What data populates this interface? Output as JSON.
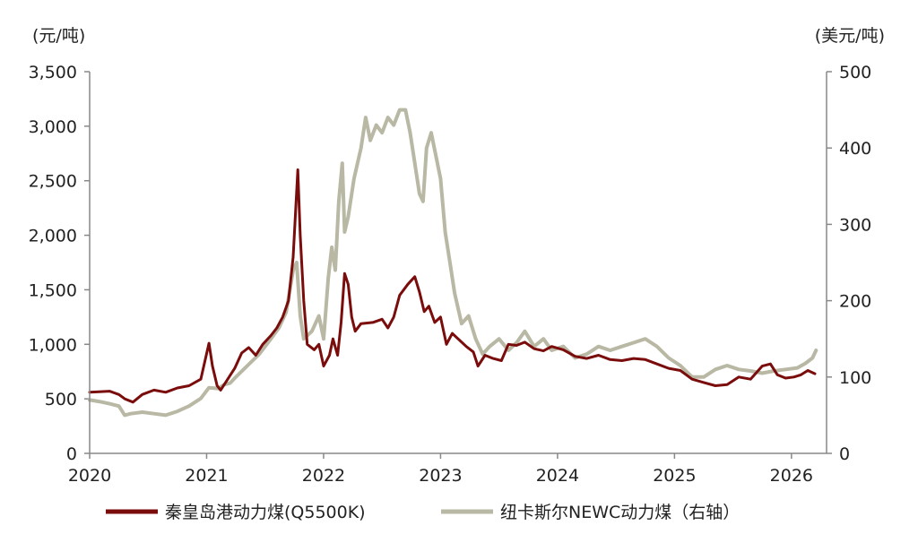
{
  "chart_data": {
    "type": "line",
    "title": "",
    "xlabel": "",
    "y_left": {
      "unit_label": "(元/吨)",
      "range": [
        0,
        3500
      ],
      "ticks": [
        0,
        500,
        1000,
        1500,
        2000,
        2500,
        3000,
        3500
      ],
      "tick_labels": [
        "0",
        "500",
        "1,000",
        "1,500",
        "2,000",
        "2,500",
        "3,000",
        "3,500"
      ]
    },
    "y_right": {
      "unit_label": "(美元/吨)",
      "range": [
        0,
        500
      ],
      "ticks": [
        0,
        100,
        200,
        300,
        400,
        500
      ],
      "tick_labels": [
        "0",
        "100",
        "200",
        "300",
        "400",
        "500"
      ]
    },
    "x_axis": {
      "range": [
        2020.0,
        2026.3
      ],
      "ticks": [
        2020,
        2021,
        2022,
        2023,
        2024,
        2025,
        2026
      ],
      "tick_labels": [
        "2020",
        "2021",
        "2022",
        "2023",
        "2024",
        "2025",
        "2026"
      ]
    },
    "grid": false,
    "legend": "bottom",
    "series": [
      {
        "name": "秦皇岛港动力煤(Q5500K)",
        "axis": "left",
        "color": "#7a0c0c",
        "points": [
          [
            2020.0,
            560
          ],
          [
            2020.08,
            565
          ],
          [
            2020.17,
            570
          ],
          [
            2020.25,
            540
          ],
          [
            2020.3,
            500
          ],
          [
            2020.37,
            470
          ],
          [
            2020.45,
            540
          ],
          [
            2020.55,
            580
          ],
          [
            2020.65,
            560
          ],
          [
            2020.75,
            600
          ],
          [
            2020.85,
            620
          ],
          [
            2020.95,
            680
          ],
          [
            2021.02,
            1010
          ],
          [
            2021.05,
            800
          ],
          [
            2021.09,
            620
          ],
          [
            2021.12,
            580
          ],
          [
            2021.18,
            680
          ],
          [
            2021.24,
            780
          ],
          [
            2021.3,
            920
          ],
          [
            2021.36,
            970
          ],
          [
            2021.42,
            900
          ],
          [
            2021.48,
            1000
          ],
          [
            2021.55,
            1080
          ],
          [
            2021.6,
            1150
          ],
          [
            2021.65,
            1250
          ],
          [
            2021.7,
            1400
          ],
          [
            2021.74,
            1800
          ],
          [
            2021.78,
            2600
          ],
          [
            2021.8,
            2000
          ],
          [
            2021.83,
            1400
          ],
          [
            2021.86,
            1000
          ],
          [
            2021.92,
            950
          ],
          [
            2021.96,
            1000
          ],
          [
            2022.0,
            800
          ],
          [
            2022.05,
            900
          ],
          [
            2022.08,
            1050
          ],
          [
            2022.12,
            900
          ],
          [
            2022.15,
            1200
          ],
          [
            2022.18,
            1650
          ],
          [
            2022.21,
            1550
          ],
          [
            2022.24,
            1250
          ],
          [
            2022.27,
            1120
          ],
          [
            2022.32,
            1190
          ],
          [
            2022.42,
            1200
          ],
          [
            2022.5,
            1230
          ],
          [
            2022.55,
            1150
          ],
          [
            2022.6,
            1250
          ],
          [
            2022.65,
            1450
          ],
          [
            2022.72,
            1550
          ],
          [
            2022.78,
            1620
          ],
          [
            2022.82,
            1480
          ],
          [
            2022.86,
            1300
          ],
          [
            2022.9,
            1350
          ],
          [
            2022.95,
            1200
          ],
          [
            2023.0,
            1250
          ],
          [
            2023.05,
            1000
          ],
          [
            2023.1,
            1100
          ],
          [
            2023.15,
            1050
          ],
          [
            2023.22,
            980
          ],
          [
            2023.28,
            930
          ],
          [
            2023.32,
            800
          ],
          [
            2023.38,
            900
          ],
          [
            2023.45,
            870
          ],
          [
            2023.52,
            850
          ],
          [
            2023.58,
            1000
          ],
          [
            2023.65,
            990
          ],
          [
            2023.72,
            1020
          ],
          [
            2023.8,
            960
          ],
          [
            2023.88,
            940
          ],
          [
            2023.95,
            980
          ],
          [
            2024.05,
            950
          ],
          [
            2024.15,
            890
          ],
          [
            2024.25,
            870
          ],
          [
            2024.35,
            900
          ],
          [
            2024.45,
            860
          ],
          [
            2024.55,
            850
          ],
          [
            2024.65,
            870
          ],
          [
            2024.75,
            860
          ],
          [
            2024.85,
            820
          ],
          [
            2024.95,
            780
          ],
          [
            2025.05,
            760
          ],
          [
            2025.15,
            680
          ],
          [
            2025.25,
            650
          ],
          [
            2025.35,
            620
          ],
          [
            2025.45,
            630
          ],
          [
            2025.55,
            700
          ],
          [
            2025.65,
            680
          ],
          [
            2025.75,
            800
          ],
          [
            2025.82,
            820
          ],
          [
            2025.88,
            720
          ],
          [
            2025.95,
            690
          ],
          [
            2026.02,
            700
          ],
          [
            2026.08,
            720
          ],
          [
            2026.14,
            760
          ],
          [
            2026.2,
            730
          ]
        ]
      },
      {
        "name": "纽卡斯尔NEWC动力煤（右轴）",
        "axis": "right",
        "color": "#b8b8a4",
        "points": [
          [
            2020.0,
            70
          ],
          [
            2020.08,
            68
          ],
          [
            2020.17,
            65
          ],
          [
            2020.25,
            62
          ],
          [
            2020.3,
            50
          ],
          [
            2020.35,
            52
          ],
          [
            2020.45,
            54
          ],
          [
            2020.55,
            52
          ],
          [
            2020.65,
            50
          ],
          [
            2020.75,
            55
          ],
          [
            2020.85,
            62
          ],
          [
            2020.95,
            72
          ],
          [
            2021.02,
            86
          ],
          [
            2021.1,
            85
          ],
          [
            2021.15,
            90
          ],
          [
            2021.2,
            92
          ],
          [
            2021.25,
            100
          ],
          [
            2021.35,
            115
          ],
          [
            2021.45,
            130
          ],
          [
            2021.55,
            150
          ],
          [
            2021.62,
            165
          ],
          [
            2021.68,
            185
          ],
          [
            2021.74,
            240
          ],
          [
            2021.77,
            250
          ],
          [
            2021.8,
            180
          ],
          [
            2021.83,
            150
          ],
          [
            2021.9,
            160
          ],
          [
            2021.96,
            180
          ],
          [
            2022.0,
            150
          ],
          [
            2022.04,
            230
          ],
          [
            2022.07,
            270
          ],
          [
            2022.1,
            240
          ],
          [
            2022.13,
            330
          ],
          [
            2022.16,
            380
          ],
          [
            2022.18,
            290
          ],
          [
            2022.21,
            310
          ],
          [
            2022.26,
            360
          ],
          [
            2022.32,
            400
          ],
          [
            2022.36,
            440
          ],
          [
            2022.4,
            410
          ],
          [
            2022.45,
            430
          ],
          [
            2022.5,
            420
          ],
          [
            2022.55,
            440
          ],
          [
            2022.6,
            430
          ],
          [
            2022.65,
            450
          ],
          [
            2022.7,
            450
          ],
          [
            2022.74,
            420
          ],
          [
            2022.78,
            380
          ],
          [
            2022.82,
            340
          ],
          [
            2022.85,
            330
          ],
          [
            2022.88,
            400
          ],
          [
            2022.92,
            420
          ],
          [
            2022.96,
            390
          ],
          [
            2023.0,
            360
          ],
          [
            2023.04,
            290
          ],
          [
            2023.08,
            250
          ],
          [
            2023.12,
            210
          ],
          [
            2023.18,
            170
          ],
          [
            2023.24,
            180
          ],
          [
            2023.3,
            150
          ],
          [
            2023.36,
            130
          ],
          [
            2023.42,
            140
          ],
          [
            2023.5,
            150
          ],
          [
            2023.58,
            135
          ],
          [
            2023.65,
            145
          ],
          [
            2023.72,
            160
          ],
          [
            2023.8,
            140
          ],
          [
            2023.88,
            150
          ],
          [
            2023.95,
            135
          ],
          [
            2024.05,
            140
          ],
          [
            2024.15,
            125
          ],
          [
            2024.25,
            130
          ],
          [
            2024.35,
            140
          ],
          [
            2024.45,
            135
          ],
          [
            2024.55,
            140
          ],
          [
            2024.65,
            145
          ],
          [
            2024.75,
            150
          ],
          [
            2024.85,
            140
          ],
          [
            2024.95,
            125
          ],
          [
            2025.05,
            115
          ],
          [
            2025.15,
            100
          ],
          [
            2025.25,
            100
          ],
          [
            2025.35,
            110
          ],
          [
            2025.45,
            115
          ],
          [
            2025.55,
            110
          ],
          [
            2025.65,
            108
          ],
          [
            2025.75,
            105
          ],
          [
            2025.85,
            108
          ],
          [
            2025.95,
            110
          ],
          [
            2026.05,
            112
          ],
          [
            2026.12,
            118
          ],
          [
            2026.18,
            125
          ],
          [
            2026.21,
            135
          ]
        ]
      }
    ]
  }
}
